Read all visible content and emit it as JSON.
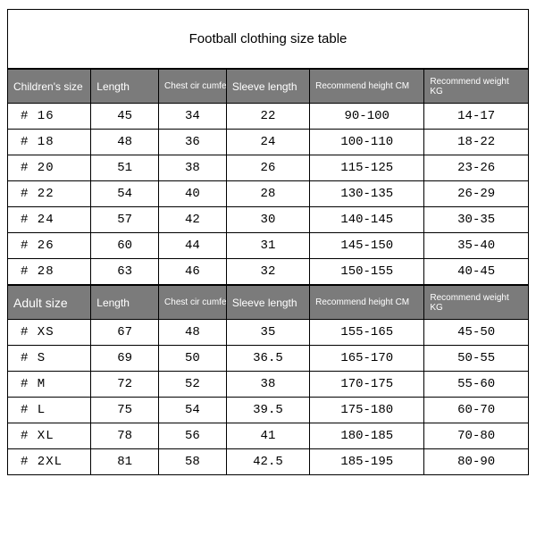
{
  "title": "Football clothing size table",
  "colors": {
    "header_bg": "#7b7b7b",
    "header_text": "#ffffff",
    "border": "#000000",
    "cell_bg": "#ffffff",
    "cell_text": "#000000"
  },
  "children_table": {
    "headers": {
      "size": "Children's size",
      "length": "Length",
      "chest": "Chest cir cumference",
      "sleeve": "Sleeve length",
      "height": "Recommend height CM",
      "weight": "Recommend weight KG"
    },
    "rows": [
      {
        "size": "# 16",
        "length": "45",
        "chest": "34",
        "sleeve": "22",
        "height": "90-100",
        "weight": "14-17"
      },
      {
        "size": "# 18",
        "length": "48",
        "chest": "36",
        "sleeve": "24",
        "height": "100-110",
        "weight": "18-22"
      },
      {
        "size": "# 20",
        "length": "51",
        "chest": "38",
        "sleeve": "26",
        "height": "115-125",
        "weight": "23-26"
      },
      {
        "size": "# 22",
        "length": "54",
        "chest": "40",
        "sleeve": "28",
        "height": "130-135",
        "weight": "26-29"
      },
      {
        "size": "# 24",
        "length": "57",
        "chest": "42",
        "sleeve": "30",
        "height": "140-145",
        "weight": "30-35"
      },
      {
        "size": "# 26",
        "length": "60",
        "chest": "44",
        "sleeve": "31",
        "height": "145-150",
        "weight": "35-40"
      },
      {
        "size": "# 28",
        "length": "63",
        "chest": "46",
        "sleeve": "32",
        "height": "150-155",
        "weight": "40-45"
      }
    ]
  },
  "adult_table": {
    "headers": {
      "size": "Adult size",
      "length": "Length",
      "chest": "Chest cir cumference",
      "sleeve": "Sleeve length",
      "height": "Recommend height CM",
      "weight": "Recommend weight KG"
    },
    "rows": [
      {
        "size": "# XS",
        "length": "67",
        "chest": "48",
        "sleeve": "35",
        "height": "155-165",
        "weight": "45-50"
      },
      {
        "size": "# S",
        "length": "69",
        "chest": "50",
        "sleeve": "36.5",
        "height": "165-170",
        "weight": "50-55"
      },
      {
        "size": "# M",
        "length": "72",
        "chest": "52",
        "sleeve": "38",
        "height": "170-175",
        "weight": "55-60"
      },
      {
        "size": "# L",
        "length": "75",
        "chest": "54",
        "sleeve": "39.5",
        "height": "175-180",
        "weight": "60-70"
      },
      {
        "size": "# XL",
        "length": "78",
        "chest": "56",
        "sleeve": "41",
        "height": "180-185",
        "weight": "70-80"
      },
      {
        "size": "# 2XL",
        "length": "81",
        "chest": "58",
        "sleeve": "42.5",
        "height": "185-195",
        "weight": "80-90"
      }
    ]
  }
}
